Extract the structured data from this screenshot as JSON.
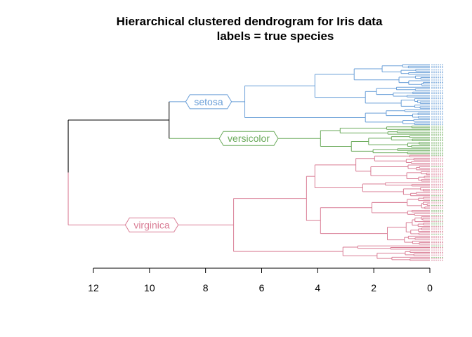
{
  "chart_data": {
    "type": "dendrogram",
    "title": "Hierarchical clustered dendrogram for Iris data",
    "subtitle": "labels = true species",
    "orientation": "horizontal",
    "xlim": [
      12.9,
      0
    ],
    "x_ticks": [
      12,
      10,
      8,
      6,
      4,
      2,
      0
    ],
    "tree": {
      "height": 12.9,
      "children": [
        {
          "height": 9.3,
          "children": [
            {
              "height": 6.6,
              "label": "setosa",
              "color": "#6a9fd8",
              "children": [
                {
                  "height": 4.1,
                  "children": [
                    {
                      "height": 2.7,
                      "leaves": 14
                    },
                    {
                      "height": 2.3,
                      "leaves": 14
                    }
                  ]
                },
                {
                  "height": 2.3,
                  "leaves": 10
                }
              ]
            },
            {
              "height": 3.9,
              "label": "versicolor",
              "color": "#6aaa5a",
              "children": [
                {
                  "height": 3.2,
                  "leaves": 6
                },
                {
                  "height": 2.8,
                  "leaves": 12
                }
              ]
            }
          ]
        },
        {
          "height": 7.0,
          "label": "virginica",
          "color": "#d97d95",
          "children": [
            {
              "height": 4.4,
              "children": [
                {
                  "height": 4.1,
                  "leaves": 26
                },
                {
                  "height": 3.9,
                  "leaves": 30
                }
              ]
            },
            {
              "height": 3.1,
              "leaves": 10
            }
          ]
        }
      ]
    },
    "leaf_colors": {
      "setosa": "#6a9fd8",
      "versicolor": "#6aaa5a",
      "virginica": "#d97d95"
    },
    "root_color": "#000000"
  }
}
